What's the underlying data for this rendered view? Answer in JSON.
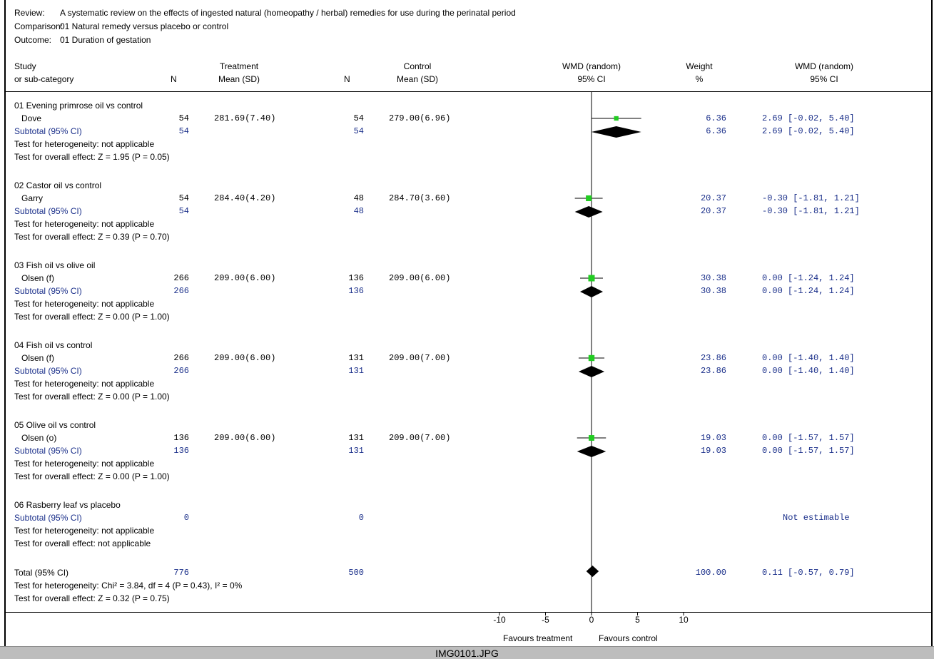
{
  "meta": {
    "review_label": "Review:",
    "review_text": "A systematic review on the effects of ingested natural (homeopathy / herbal) remedies for use during the perinatal period",
    "comparison_label": "Comparison:",
    "comparison_text": "01 Natural remedy versus placebo or control",
    "outcome_label": "Outcome:",
    "outcome_text": "01 Duration of gestation"
  },
  "headers": {
    "study_1": "Study",
    "study_2": "or sub-category",
    "n_treat": "N",
    "treat_1": "Treatment",
    "treat_2": "Mean (SD)",
    "n_ctrl": "N",
    "ctrl_1": "Control",
    "ctrl_2": "Mean (SD)",
    "plot_1": "WMD (random)",
    "plot_2": "95% CI",
    "weight_1": "Weight",
    "weight_2": "%",
    "ci_1": "WMD (random)",
    "ci_2": "95% CI"
  },
  "groups": [
    {
      "title": "01 Evening primrose oil vs control",
      "study": {
        "name": "Dove",
        "n1": "54",
        "mean1": "281.69(7.40)",
        "n2": "54",
        "mean2": "279.00(6.96)",
        "weight": "6.36",
        "ci": "2.69 [-0.02, 5.40]"
      },
      "subtotal": {
        "label": "Subtotal (95% CI)",
        "n1": "54",
        "n2": "54",
        "weight": "6.36",
        "ci": "2.69 [-0.02, 5.40]"
      },
      "het": "Test for heterogeneity: not applicable",
      "overall": "Test for overall effect: Z = 1.95 (P = 0.05)"
    },
    {
      "title": "02 Castor oil vs control",
      "study": {
        "name": "Garry",
        "n1": "54",
        "mean1": "284.40(4.20)",
        "n2": "48",
        "mean2": "284.70(3.60)",
        "weight": "20.37",
        "ci": "-0.30 [-1.81, 1.21]"
      },
      "subtotal": {
        "label": "Subtotal (95% CI)",
        "n1": "54",
        "n2": "48",
        "weight": "20.37",
        "ci": "-0.30 [-1.81, 1.21]"
      },
      "het": "Test for heterogeneity: not applicable",
      "overall": "Test for overall effect: Z = 0.39 (P = 0.70)"
    },
    {
      "title": "03 Fish oil vs olive oil",
      "study": {
        "name": "Olsen (f)",
        "n1": "266",
        "mean1": "209.00(6.00)",
        "n2": "136",
        "mean2": "209.00(6.00)",
        "weight": "30.38",
        "ci": "0.00 [-1.24, 1.24]"
      },
      "subtotal": {
        "label": "Subtotal (95% CI)",
        "n1": "266",
        "n2": "136",
        "weight": "30.38",
        "ci": "0.00 [-1.24, 1.24]"
      },
      "het": "Test for heterogeneity: not applicable",
      "overall": "Test for overall effect: Z = 0.00 (P = 1.00)"
    },
    {
      "title": "04 Fish oil vs control",
      "study": {
        "name": "Olsen (f)",
        "n1": "266",
        "mean1": "209.00(6.00)",
        "n2": "131",
        "mean2": "209.00(7.00)",
        "weight": "23.86",
        "ci": "0.00 [-1.40, 1.40]"
      },
      "subtotal": {
        "label": "Subtotal (95% CI)",
        "n1": "266",
        "n2": "131",
        "weight": "23.86",
        "ci": "0.00 [-1.40, 1.40]"
      },
      "het": "Test for heterogeneity: not applicable",
      "overall": "Test for overall effect: Z = 0.00 (P = 1.00)"
    },
    {
      "title": "05 Olive oil vs control",
      "study": {
        "name": "Olsen (o)",
        "n1": "136",
        "mean1": "209.00(6.00)",
        "n2": "131",
        "mean2": "209.00(7.00)",
        "weight": "19.03",
        "ci": "0.00 [-1.57, 1.57]"
      },
      "subtotal": {
        "label": "Subtotal (95% CI)",
        "n1": "136",
        "n2": "131",
        "weight": "19.03",
        "ci": "0.00 [-1.57, 1.57]"
      },
      "het": "Test for heterogeneity: not applicable",
      "overall": "Test for overall effect: Z = 0.00 (P = 1.00)"
    },
    {
      "title": "06 Rasberry leaf vs placebo",
      "subtotal": {
        "label": "Subtotal (95% CI)",
        "n1": "0",
        "n2": "0",
        "ci": "Not estimable"
      },
      "het": "Test for heterogeneity: not applicable",
      "overall": "Test for overall effect: not applicable"
    }
  ],
  "total": {
    "label": "Total (95% CI)",
    "n1": "776",
    "n2": "500",
    "weight": "100.00",
    "ci": "0.11 [-0.57, 0.79]",
    "het": "Test for heterogeneity: Chi² = 3.84, df = 4 (P = 0.43), I² = 0%",
    "overall": "Test for overall effect: Z = 0.32 (P = 0.75)"
  },
  "axis": {
    "ticks": [
      "-10",
      "-5",
      "0",
      "5",
      "10"
    ],
    "favours_left": "Favours treatment",
    "favours_right": "Favours control"
  },
  "footer": {
    "filename": "IMG0101.JPG"
  },
  "colors": {
    "study_marker": "#22cc22",
    "diamond": "#000000",
    "numbers": "#1a2f8a"
  },
  "chart_data": {
    "type": "forest",
    "xlim": [
      -10,
      10
    ],
    "xticks": [
      -10,
      -5,
      0,
      5,
      10
    ],
    "measure": "WMD (random)",
    "studies": [
      {
        "group": "01 Evening primrose oil vs control",
        "name": "Dove",
        "estimate": 2.69,
        "lower": -0.02,
        "upper": 5.4,
        "weight": 6.36
      },
      {
        "group": "02 Castor oil vs control",
        "name": "Garry",
        "estimate": -0.3,
        "lower": -1.81,
        "upper": 1.21,
        "weight": 20.37
      },
      {
        "group": "03 Fish oil vs olive oil",
        "name": "Olsen (f)",
        "estimate": 0.0,
        "lower": -1.24,
        "upper": 1.24,
        "weight": 30.38
      },
      {
        "group": "04 Fish oil vs control",
        "name": "Olsen (f)",
        "estimate": 0.0,
        "lower": -1.4,
        "upper": 1.4,
        "weight": 23.86
      },
      {
        "group": "05 Olive oil vs control",
        "name": "Olsen (o)",
        "estimate": 0.0,
        "lower": -1.57,
        "upper": 1.57,
        "weight": 19.03
      }
    ],
    "subtotals": [
      {
        "group": "01 Evening primrose oil vs control",
        "estimate": 2.69,
        "lower": -0.02,
        "upper": 5.4
      },
      {
        "group": "02 Castor oil vs control",
        "estimate": -0.3,
        "lower": -1.81,
        "upper": 1.21
      },
      {
        "group": "03 Fish oil vs olive oil",
        "estimate": 0.0,
        "lower": -1.24,
        "upper": 1.24
      },
      {
        "group": "04 Fish oil vs control",
        "estimate": 0.0,
        "lower": -1.4,
        "upper": 1.4
      },
      {
        "group": "05 Olive oil vs control",
        "estimate": 0.0,
        "lower": -1.57,
        "upper": 1.57
      },
      {
        "group": "06 Rasberry leaf vs placebo",
        "estimate": null,
        "lower": null,
        "upper": null
      }
    ],
    "total": {
      "estimate": 0.11,
      "lower": -0.57,
      "upper": 0.79
    }
  }
}
